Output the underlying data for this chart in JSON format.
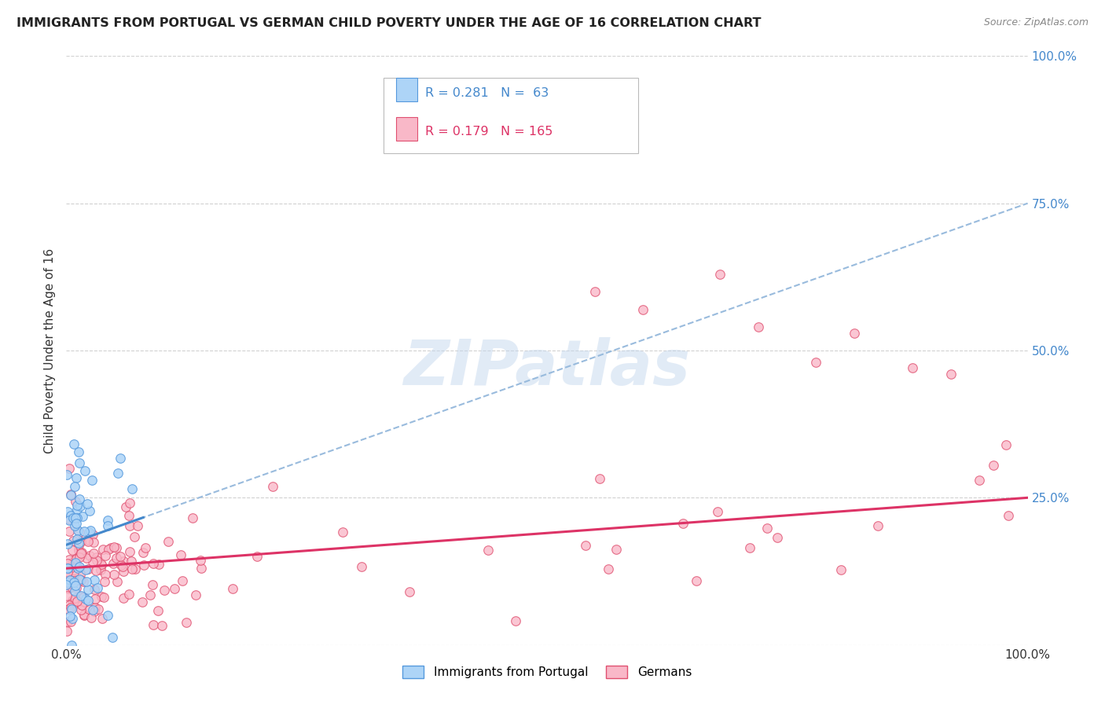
{
  "title": "IMMIGRANTS FROM PORTUGAL VS GERMAN CHILD POVERTY UNDER THE AGE OF 16 CORRELATION CHART",
  "source": "Source: ZipAtlas.com",
  "ylabel": "Child Poverty Under the Age of 16",
  "legend_blue_label": "Immigrants from Portugal",
  "legend_pink_label": "Germans",
  "legend_blue_r": "R = 0.281",
  "legend_blue_n": "N =  63",
  "legend_pink_r": "R = 0.179",
  "legend_pink_n": "N = 165",
  "blue_fill": "#add4f7",
  "blue_edge": "#5599dd",
  "pink_fill": "#f9b8c8",
  "pink_edge": "#e05070",
  "blue_trend_color": "#4488cc",
  "pink_trend_color": "#dd3366",
  "blue_dash_color": "#99bbdd",
  "watermark": "ZIPatlas",
  "bg_color": "#ffffff",
  "grid_color": "#cccccc",
  "tick_color": "#4488cc",
  "ylabel_color": "#333333",
  "title_color": "#222222",
  "source_color": "#888888"
}
